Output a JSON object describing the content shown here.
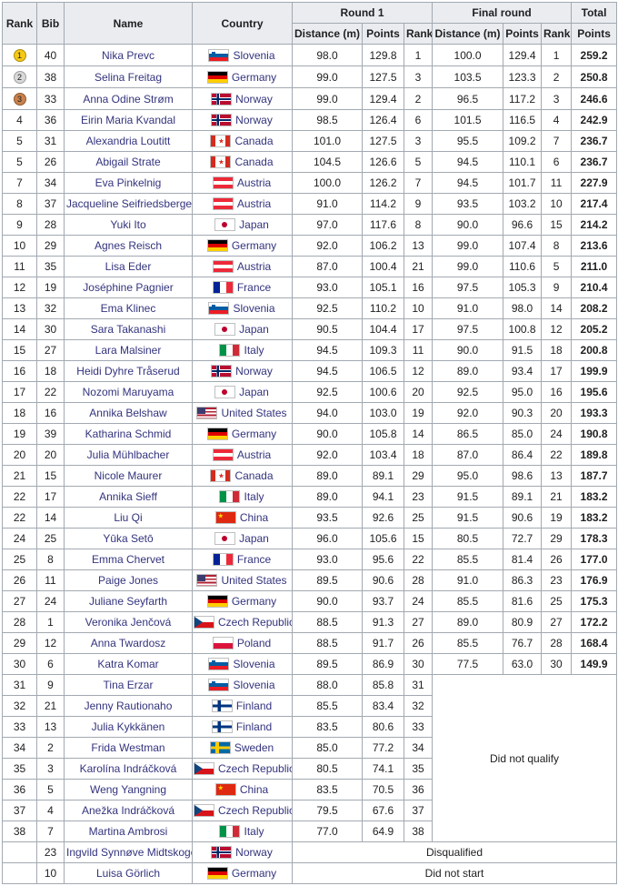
{
  "colors": {
    "header_bg": "#eaecf0",
    "border": "#a2a9b1",
    "link": "#33337e",
    "medal_gold": "#f4c916",
    "medal_silver": "#d9d9d9",
    "medal_bronze": "#c9824d"
  },
  "table": {
    "headers": {
      "rank": "Rank",
      "bib": "Bib",
      "name": "Name",
      "country": "Country",
      "round1": "Round 1",
      "final_round": "Final round",
      "total": "Total",
      "distance": "Distance (m)",
      "points": "Points",
      "rank_sub": "Rank",
      "total_points": "Points"
    },
    "statuses": {
      "dnq": "Did not qualify",
      "dsq": "Disqualified",
      "dns": "Did not start"
    },
    "rows": [
      {
        "rank": "1",
        "medal": "gold",
        "bib": "40",
        "name": "Nika Prevc",
        "country": "Slovenia",
        "flag": "si",
        "r1d": "98.0",
        "r1p": "129.8",
        "r1r": "1",
        "frd": "100.0",
        "frp": "129.4",
        "frr": "1",
        "total": "259.2"
      },
      {
        "rank": "2",
        "medal": "silver",
        "bib": "38",
        "name": "Selina Freitag",
        "country": "Germany",
        "flag": "de",
        "r1d": "99.0",
        "r1p": "127.5",
        "r1r": "3",
        "frd": "103.5",
        "frp": "123.3",
        "frr": "2",
        "total": "250.8"
      },
      {
        "rank": "3",
        "medal": "bronze",
        "bib": "33",
        "name": "Anna Odine Strøm",
        "country": "Norway",
        "flag": "no",
        "r1d": "99.0",
        "r1p": "129.4",
        "r1r": "2",
        "frd": "96.5",
        "frp": "117.2",
        "frr": "3",
        "total": "246.6"
      },
      {
        "rank": "4",
        "bib": "36",
        "name": "Eirin Maria Kvandal",
        "country": "Norway",
        "flag": "no",
        "r1d": "98.5",
        "r1p": "126.4",
        "r1r": "6",
        "frd": "101.5",
        "frp": "116.5",
        "frr": "4",
        "total": "242.9"
      },
      {
        "rank": "5",
        "bib": "31",
        "name": "Alexandria Loutitt",
        "country": "Canada",
        "flag": "ca",
        "r1d": "101.0",
        "r1p": "127.5",
        "r1r": "3",
        "frd": "95.5",
        "frp": "109.2",
        "frr": "7",
        "total": "236.7"
      },
      {
        "rank": "5",
        "bib": "26",
        "name": "Abigail Strate",
        "country": "Canada",
        "flag": "ca",
        "r1d": "104.5",
        "r1p": "126.6",
        "r1r": "5",
        "frd": "94.5",
        "frp": "110.1",
        "frr": "6",
        "total": "236.7"
      },
      {
        "rank": "7",
        "bib": "34",
        "name": "Eva Pinkelnig",
        "country": "Austria",
        "flag": "at",
        "r1d": "100.0",
        "r1p": "126.2",
        "r1r": "7",
        "frd": "94.5",
        "frp": "101.7",
        "frr": "11",
        "total": "227.9"
      },
      {
        "rank": "8",
        "bib": "37",
        "name": "Jacqueline Seifriedsberger",
        "country": "Austria",
        "flag": "at",
        "r1d": "91.0",
        "r1p": "114.2",
        "r1r": "9",
        "frd": "93.5",
        "frp": "103.2",
        "frr": "10",
        "total": "217.4"
      },
      {
        "rank": "9",
        "bib": "28",
        "name": "Yuki Ito",
        "country": "Japan",
        "flag": "jp",
        "r1d": "97.0",
        "r1p": "117.6",
        "r1r": "8",
        "frd": "90.0",
        "frp": "96.6",
        "frr": "15",
        "total": "214.2"
      },
      {
        "rank": "10",
        "bib": "29",
        "name": "Agnes Reisch",
        "country": "Germany",
        "flag": "de",
        "r1d": "92.0",
        "r1p": "106.2",
        "r1r": "13",
        "frd": "99.0",
        "frp": "107.4",
        "frr": "8",
        "total": "213.6"
      },
      {
        "rank": "11",
        "bib": "35",
        "name": "Lisa Eder",
        "country": "Austria",
        "flag": "at",
        "r1d": "87.0",
        "r1p": "100.4",
        "r1r": "21",
        "frd": "99.0",
        "frp": "110.6",
        "frr": "5",
        "total": "211.0"
      },
      {
        "rank": "12",
        "bib": "19",
        "name": "Joséphine Pagnier",
        "country": "France",
        "flag": "fr",
        "r1d": "93.0",
        "r1p": "105.1",
        "r1r": "16",
        "frd": "97.5",
        "frp": "105.3",
        "frr": "9",
        "total": "210.4"
      },
      {
        "rank": "13",
        "bib": "32",
        "name": "Ema Klinec",
        "country": "Slovenia",
        "flag": "si",
        "r1d": "92.5",
        "r1p": "110.2",
        "r1r": "10",
        "frd": "91.0",
        "frp": "98.0",
        "frr": "14",
        "total": "208.2"
      },
      {
        "rank": "14",
        "bib": "30",
        "name": "Sara Takanashi",
        "country": "Japan",
        "flag": "jp",
        "r1d": "90.5",
        "r1p": "104.4",
        "r1r": "17",
        "frd": "97.5",
        "frp": "100.8",
        "frr": "12",
        "total": "205.2"
      },
      {
        "rank": "15",
        "bib": "27",
        "name": "Lara Malsiner",
        "country": "Italy",
        "flag": "it",
        "r1d": "94.5",
        "r1p": "109.3",
        "r1r": "11",
        "frd": "90.0",
        "frp": "91.5",
        "frr": "18",
        "total": "200.8"
      },
      {
        "rank": "16",
        "bib": "18",
        "name": "Heidi Dyhre Tråserud",
        "country": "Norway",
        "flag": "no",
        "r1d": "94.5",
        "r1p": "106.5",
        "r1r": "12",
        "frd": "89.0",
        "frp": "93.4",
        "frr": "17",
        "total": "199.9"
      },
      {
        "rank": "17",
        "bib": "22",
        "name": "Nozomi Maruyama",
        "country": "Japan",
        "flag": "jp",
        "r1d": "92.5",
        "r1p": "100.6",
        "r1r": "20",
        "frd": "92.5",
        "frp": "95.0",
        "frr": "16",
        "total": "195.6"
      },
      {
        "rank": "18",
        "bib": "16",
        "name": "Annika Belshaw",
        "country": "United States",
        "flag": "us",
        "r1d": "94.0",
        "r1p": "103.0",
        "r1r": "19",
        "frd": "92.0",
        "frp": "90.3",
        "frr": "20",
        "total": "193.3"
      },
      {
        "rank": "19",
        "bib": "39",
        "name": "Katharina Schmid",
        "country": "Germany",
        "flag": "de",
        "r1d": "90.0",
        "r1p": "105.8",
        "r1r": "14",
        "frd": "86.5",
        "frp": "85.0",
        "frr": "24",
        "total": "190.8"
      },
      {
        "rank": "20",
        "bib": "20",
        "name": "Julia Mühlbacher",
        "country": "Austria",
        "flag": "at",
        "r1d": "92.0",
        "r1p": "103.4",
        "r1r": "18",
        "frd": "87.0",
        "frp": "86.4",
        "frr": "22",
        "total": "189.8"
      },
      {
        "rank": "21",
        "bib": "15",
        "name": "Nicole Maurer",
        "country": "Canada",
        "flag": "ca",
        "r1d": "89.0",
        "r1p": "89.1",
        "r1r": "29",
        "frd": "95.0",
        "frp": "98.6",
        "frr": "13",
        "total": "187.7"
      },
      {
        "rank": "22",
        "bib": "17",
        "name": "Annika Sieff",
        "country": "Italy",
        "flag": "it",
        "r1d": "89.0",
        "r1p": "94.1",
        "r1r": "23",
        "frd": "91.5",
        "frp": "89.1",
        "frr": "21",
        "total": "183.2"
      },
      {
        "rank": "22",
        "bib": "14",
        "name": "Liu Qi",
        "country": "China",
        "flag": "cn",
        "r1d": "93.5",
        "r1p": "92.6",
        "r1r": "25",
        "frd": "91.5",
        "frp": "90.6",
        "frr": "19",
        "total": "183.2"
      },
      {
        "rank": "24",
        "bib": "25",
        "name": "Yūka Setō",
        "country": "Japan",
        "flag": "jp",
        "r1d": "96.0",
        "r1p": "105.6",
        "r1r": "15",
        "frd": "80.5",
        "frp": "72.7",
        "frr": "29",
        "total": "178.3"
      },
      {
        "rank": "25",
        "bib": "8",
        "name": "Emma Chervet",
        "country": "France",
        "flag": "fr",
        "r1d": "93.0",
        "r1p": "95.6",
        "r1r": "22",
        "frd": "85.5",
        "frp": "81.4",
        "frr": "26",
        "total": "177.0"
      },
      {
        "rank": "26",
        "bib": "11",
        "name": "Paige Jones",
        "country": "United States",
        "flag": "us",
        "r1d": "89.5",
        "r1p": "90.6",
        "r1r": "28",
        "frd": "91.0",
        "frp": "86.3",
        "frr": "23",
        "total": "176.9"
      },
      {
        "rank": "27",
        "bib": "24",
        "name": "Juliane Seyfarth",
        "country": "Germany",
        "flag": "de",
        "r1d": "90.0",
        "r1p": "93.7",
        "r1r": "24",
        "frd": "85.5",
        "frp": "81.6",
        "frr": "25",
        "total": "175.3"
      },
      {
        "rank": "28",
        "bib": "1",
        "name": "Veronika Jenčová",
        "country": "Czech Republic",
        "flag": "cz",
        "r1d": "88.5",
        "r1p": "91.3",
        "r1r": "27",
        "frd": "89.0",
        "frp": "80.9",
        "frr": "27",
        "total": "172.2"
      },
      {
        "rank": "29",
        "bib": "12",
        "name": "Anna Twardosz",
        "country": "Poland",
        "flag": "pl",
        "r1d": "88.5",
        "r1p": "91.7",
        "r1r": "26",
        "frd": "85.5",
        "frp": "76.7",
        "frr": "28",
        "total": "168.4"
      },
      {
        "rank": "30",
        "bib": "6",
        "name": "Katra Komar",
        "country": "Slovenia",
        "flag": "si",
        "r1d": "89.5",
        "r1p": "86.9",
        "r1r": "30",
        "frd": "77.5",
        "frp": "63.0",
        "frr": "30",
        "total": "149.9"
      },
      {
        "rank": "31",
        "bib": "9",
        "name": "Tina Erzar",
        "country": "Slovenia",
        "flag": "si",
        "type": "dnq",
        "anchor": true,
        "r1d": "88.0",
        "r1p": "85.8",
        "r1r": "31"
      },
      {
        "rank": "32",
        "bib": "21",
        "name": "Jenny Rautionaho",
        "country": "Finland",
        "flag": "fi",
        "type": "dnq",
        "r1d": "85.5",
        "r1p": "83.4",
        "r1r": "32"
      },
      {
        "rank": "33",
        "bib": "13",
        "name": "Julia Kykkänen",
        "country": "Finland",
        "flag": "fi",
        "type": "dnq",
        "r1d": "83.5",
        "r1p": "80.6",
        "r1r": "33"
      },
      {
        "rank": "34",
        "bib": "2",
        "name": "Frida Westman",
        "country": "Sweden",
        "flag": "se",
        "type": "dnq",
        "r1d": "85.0",
        "r1p": "77.2",
        "r1r": "34"
      },
      {
        "rank": "35",
        "bib": "3",
        "name": "Karolína Indráčková",
        "country": "Czech Republic",
        "flag": "cz",
        "type": "dnq",
        "r1d": "80.5",
        "r1p": "74.1",
        "r1r": "35"
      },
      {
        "rank": "36",
        "bib": "5",
        "name": "Weng Yangning",
        "country": "China",
        "flag": "cn",
        "type": "dnq",
        "r1d": "83.5",
        "r1p": "70.5",
        "r1r": "36"
      },
      {
        "rank": "37",
        "bib": "4",
        "name": "Anežka Indráčková",
        "country": "Czech Republic",
        "flag": "cz",
        "type": "dnq",
        "r1d": "79.5",
        "r1p": "67.6",
        "r1r": "37"
      },
      {
        "rank": "38",
        "bib": "7",
        "name": "Martina Ambrosi",
        "country": "Italy",
        "flag": "it",
        "type": "dnq",
        "r1d": "77.0",
        "r1p": "64.9",
        "r1r": "38"
      },
      {
        "rank": "",
        "bib": "23",
        "name": "Ingvild Synnøve Midtskogen",
        "country": "Norway",
        "flag": "no",
        "type": "dsq"
      },
      {
        "rank": "",
        "bib": "10",
        "name": "Luisa Görlich",
        "country": "Germany",
        "flag": "de",
        "type": "dns"
      }
    ]
  }
}
